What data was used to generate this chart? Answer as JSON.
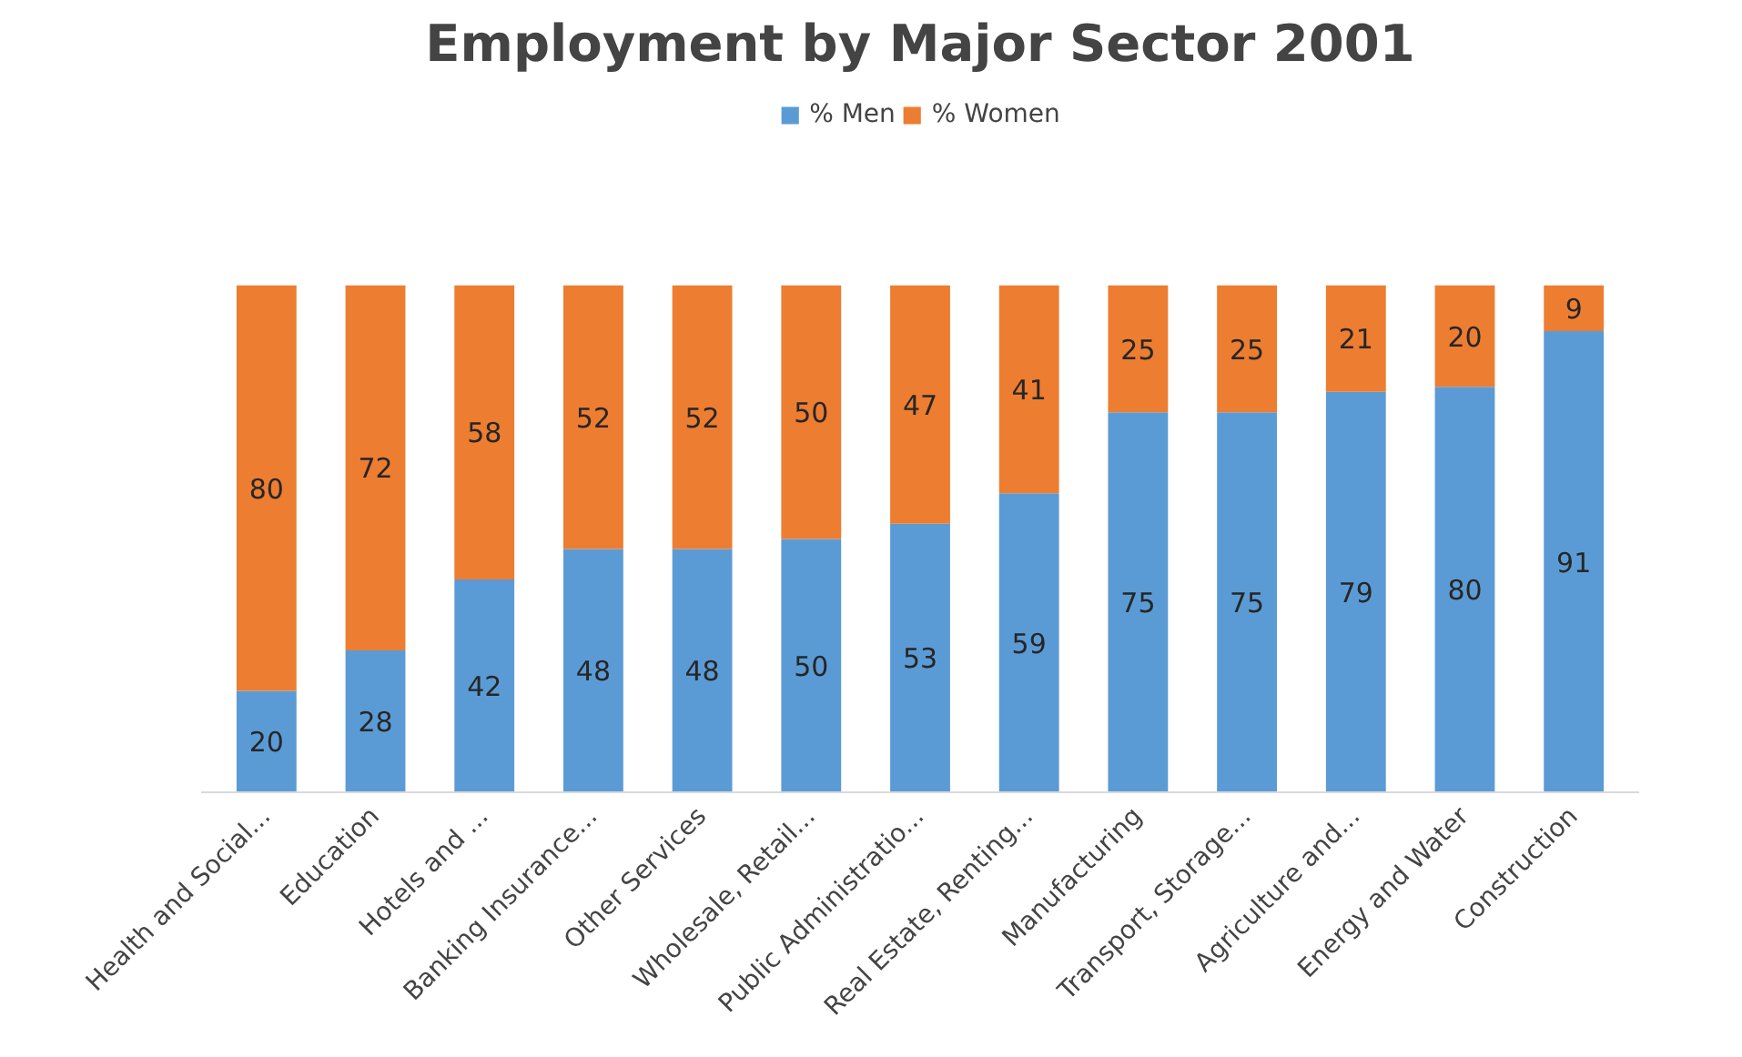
{
  "chart_data": {
    "type": "bar",
    "stacked": true,
    "title": "Employment by Major Sector 2001",
    "categories": [
      "Health and Social...",
      "Education",
      "Hotels and ...",
      "Banking Insurance...",
      "Other Services",
      "Wholesale, Retail...",
      "Public Administratio...",
      "Real Estate, Renting...",
      "Manufacturing",
      "Transport, Storage...",
      "Agriculture and...",
      "Energy and Water",
      "Construction"
    ],
    "series": [
      {
        "name": "% Men",
        "color": "#5b9bd5",
        "values": [
          20,
          28,
          42,
          48,
          48,
          50,
          53,
          59,
          75,
          75,
          79,
          80,
          91
        ]
      },
      {
        "name": "% Women",
        "color": "#ed7d31",
        "values": [
          80,
          72,
          58,
          52,
          52,
          50,
          47,
          41,
          25,
          25,
          21,
          20,
          9
        ]
      }
    ],
    "data_labels": true,
    "legend": "top",
    "grid": false
  }
}
